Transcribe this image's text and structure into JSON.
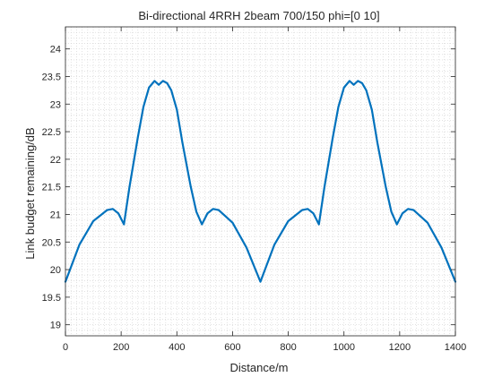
{
  "chart_data": {
    "type": "line",
    "title": "Bi-directional 4RRH 2beam 700/150 phi=[0  10]",
    "xlabel": "Distance/m",
    "ylabel": "Link budget remaining/dB",
    "xlim": [
      0,
      1400
    ],
    "ylim": [
      18.8,
      24.4
    ],
    "xticks": [
      0,
      200,
      400,
      600,
      800,
      1000,
      1200,
      1400
    ],
    "yticks": [
      19,
      19.5,
      20,
      20.5,
      21,
      21.5,
      22,
      22.5,
      23,
      23.5,
      24
    ],
    "grid": "minor dotted",
    "line_color": "#0072BD",
    "series": [
      {
        "x": [
          0,
          50,
          100,
          150,
          170,
          190,
          210,
          230,
          260,
          280,
          300,
          320,
          335,
          350,
          365,
          380,
          400,
          420,
          450,
          470,
          490,
          510,
          530,
          550,
          600,
          650,
          700,
          750,
          800,
          850,
          870,
          890,
          910,
          930,
          960,
          980,
          1000,
          1020,
          1035,
          1050,
          1065,
          1080,
          1100,
          1120,
          1150,
          1170,
          1190,
          1210,
          1230,
          1250,
          1300,
          1350,
          1400
        ],
        "y": [
          19.78,
          20.45,
          20.88,
          21.08,
          21.1,
          21.02,
          20.82,
          21.5,
          22.4,
          22.95,
          23.3,
          23.42,
          23.35,
          23.42,
          23.38,
          23.25,
          22.9,
          22.3,
          21.5,
          21.05,
          20.82,
          21.02,
          21.1,
          21.08,
          20.85,
          20.4,
          19.78,
          20.45,
          20.88,
          21.08,
          21.1,
          21.02,
          20.82,
          21.5,
          22.4,
          22.95,
          23.3,
          23.42,
          23.35,
          23.42,
          23.38,
          23.25,
          22.9,
          22.3,
          21.5,
          21.05,
          20.82,
          21.02,
          21.1,
          21.08,
          20.85,
          20.4,
          19.78
        ]
      }
    ]
  }
}
